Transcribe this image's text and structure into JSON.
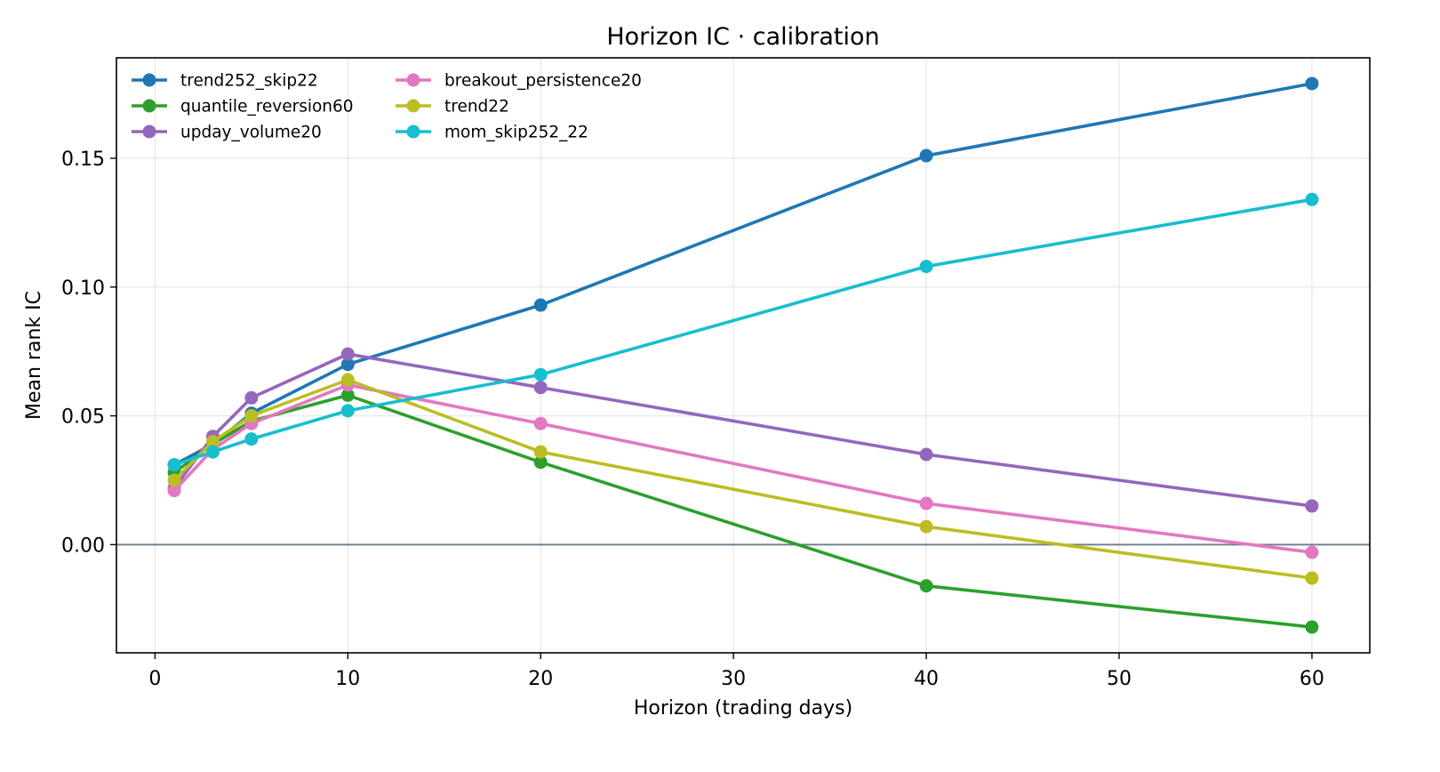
{
  "chart_data": {
    "type": "line",
    "title": "Horizon IC · calibration",
    "xlabel": "Horizon (trading days)",
    "ylabel": "Mean rank IC",
    "xlim": [
      -2,
      63
    ],
    "ylim": [
      -0.042,
      0.189
    ],
    "x_ticks": [
      0,
      10,
      20,
      30,
      40,
      50,
      60
    ],
    "y_ticks": [
      0.0,
      0.05,
      0.1,
      0.15
    ],
    "x_tick_labels": [
      "0",
      "10",
      "20",
      "30",
      "40",
      "50",
      "60"
    ],
    "y_tick_labels": [
      "0.00",
      "0.05",
      "0.10",
      "0.15"
    ],
    "grid": true,
    "zero_line": true,
    "legend_position": "top-left",
    "legend_columns": 2,
    "x": [
      1,
      3,
      5,
      10,
      20,
      40,
      60
    ],
    "series": [
      {
        "name": "trend252_skip22",
        "color": "#1f77b4",
        "values": [
          0.031,
          0.039,
          0.051,
          0.07,
          0.093,
          0.151,
          0.179
        ]
      },
      {
        "name": "quantile_reversion60",
        "color": "#2ca02c",
        "values": [
          0.028,
          0.039,
          0.048,
          0.058,
          0.032,
          -0.016,
          -0.032
        ]
      },
      {
        "name": "upday_volume20",
        "color": "#9467bd",
        "values": [
          0.022,
          0.042,
          0.057,
          0.074,
          0.061,
          0.035,
          0.015
        ]
      },
      {
        "name": "breakout_persistence20",
        "color": "#e377c2",
        "values": [
          0.021,
          0.037,
          0.047,
          0.062,
          0.047,
          0.016,
          -0.003
        ]
      },
      {
        "name": "trend22",
        "color": "#bcbd22",
        "values": [
          0.025,
          0.04,
          0.05,
          0.064,
          0.036,
          0.007,
          -0.013
        ]
      },
      {
        "name": "mom_skip252_22",
        "color": "#17becf",
        "values": [
          0.031,
          0.036,
          0.041,
          0.052,
          0.066,
          0.108,
          0.134
        ]
      }
    ]
  }
}
